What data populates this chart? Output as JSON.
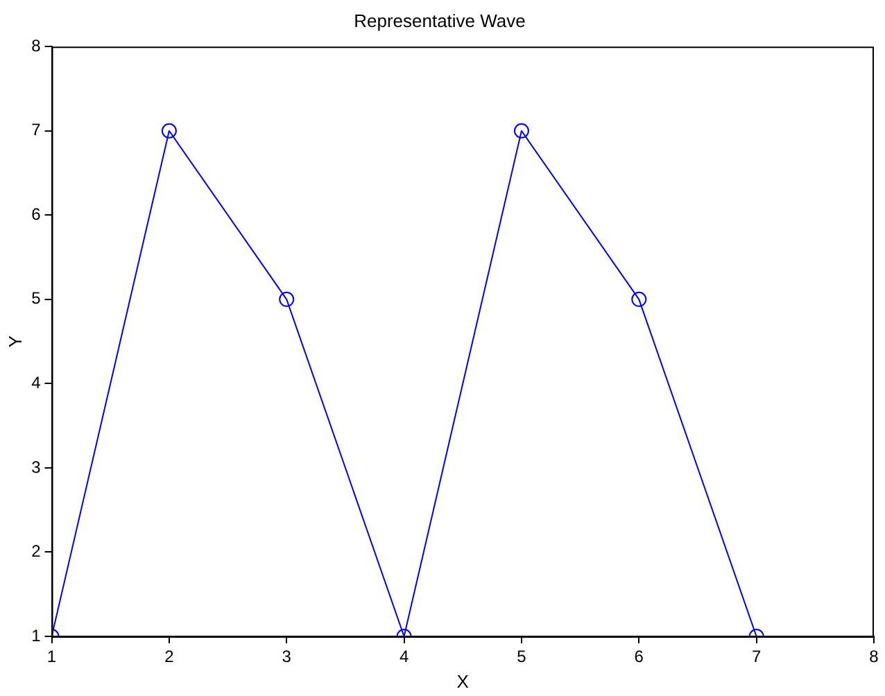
{
  "chart_data": {
    "type": "line",
    "title": "Representative Wave",
    "xlabel": "X",
    "ylabel": "Y",
    "x": [
      1,
      2,
      3,
      4,
      5,
      6,
      7
    ],
    "series": [
      {
        "color": "#0000ff",
        "values": [
          1,
          7,
          5,
          1,
          7,
          5,
          1
        ]
      }
    ],
    "xlim": [
      1,
      8
    ],
    "ylim": [
      1,
      8
    ],
    "xticks": [
      1,
      2,
      3,
      4,
      5,
      6,
      7,
      8
    ],
    "yticks": [
      1,
      2,
      3,
      4,
      5,
      6,
      7,
      8
    ],
    "grid": false,
    "legend": false,
    "marker": "circle",
    "line_style": "solid"
  }
}
